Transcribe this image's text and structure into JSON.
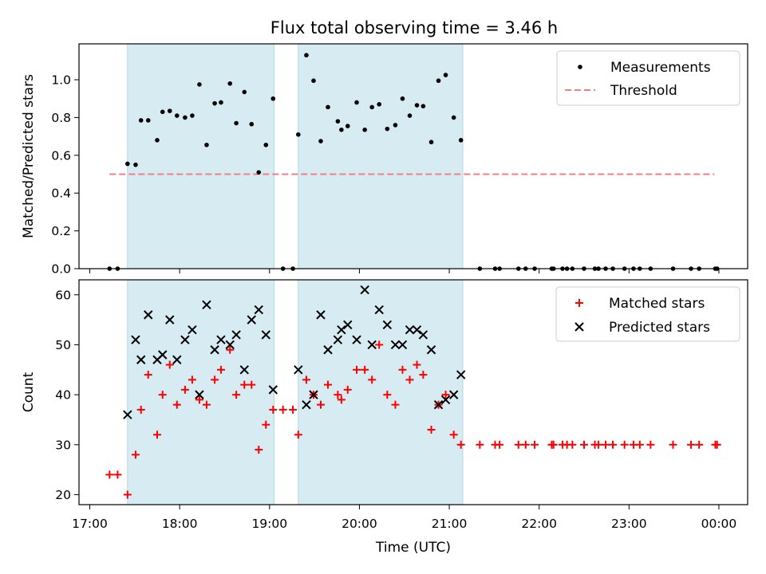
{
  "chart_data": {
    "title": "Flux total observing time = 3.46 h",
    "x_unit": "hours since 17:00 UTC (values above 7 fall after midnight)",
    "xlabel": "Time (UTC)",
    "xlim": [
      -0.12,
      7.32
    ],
    "xticks": [
      {
        "value": 0,
        "label": "17:00"
      },
      {
        "value": 1,
        "label": "18:00"
      },
      {
        "value": 2,
        "label": "19:00"
      },
      {
        "value": 3,
        "label": "20:00"
      },
      {
        "value": 4,
        "label": "21:00"
      },
      {
        "value": 5,
        "label": "22:00"
      },
      {
        "value": 6,
        "label": "23:00"
      },
      {
        "value": 7,
        "label": "00:00"
      }
    ],
    "observing_windows": [
      [
        0.42,
        2.05
      ],
      [
        2.32,
        4.15
      ]
    ],
    "top_panel": {
      "type": "scatter",
      "ylabel": "Matched/Predicted stars",
      "ylim": [
        0,
        1.19
      ],
      "yticks": [
        {
          "value": 0,
          "label": "0.0"
        },
        {
          "value": 0.2,
          "label": "0.2"
        },
        {
          "value": 0.4,
          "label": "0.4"
        },
        {
          "value": 0.6,
          "label": "0.6"
        },
        {
          "value": 0.8,
          "label": "0.8"
        },
        {
          "value": 1.0,
          "label": "1.0"
        }
      ],
      "threshold": {
        "value": 0.5,
        "x_range": [
          0.22,
          6.95
        ],
        "color": "#f08080"
      },
      "legend": {
        "position": "top-right",
        "measurements_label": "Measurements",
        "threshold_label": "Threshold"
      },
      "measurements": [
        [
          0.22,
          0
        ],
        [
          0.31,
          0
        ],
        [
          0.42,
          0.555
        ],
        [
          0.51,
          0.55
        ],
        [
          0.57,
          0.785
        ],
        [
          0.65,
          0.785
        ],
        [
          0.75,
          0.68
        ],
        [
          0.81,
          0.83
        ],
        [
          0.89,
          0.835
        ],
        [
          0.97,
          0.81
        ],
        [
          1.06,
          0.8
        ],
        [
          1.14,
          0.81
        ],
        [
          1.22,
          0.975
        ],
        [
          1.3,
          0.655
        ],
        [
          1.39,
          0.875
        ],
        [
          1.46,
          0.88
        ],
        [
          1.56,
          0.98
        ],
        [
          1.63,
          0.77
        ],
        [
          1.72,
          0.935
        ],
        [
          1.8,
          0.765
        ],
        [
          1.88,
          0.51
        ],
        [
          1.96,
          0.655
        ],
        [
          2.04,
          0.9
        ],
        [
          2.15,
          0
        ],
        [
          2.26,
          0
        ],
        [
          2.32,
          0.71
        ],
        [
          2.41,
          1.13
        ],
        [
          2.49,
          0.995
        ],
        [
          2.57,
          0.675
        ],
        [
          2.65,
          0.855
        ],
        [
          2.76,
          0.78
        ],
        [
          2.8,
          0.735
        ],
        [
          2.87,
          0.755
        ],
        [
          2.97,
          0.88
        ],
        [
          3.06,
          0.735
        ],
        [
          3.14,
          0.855
        ],
        [
          3.22,
          0.87
        ],
        [
          3.31,
          0.74
        ],
        [
          3.4,
          0.76
        ],
        [
          3.48,
          0.9
        ],
        [
          3.56,
          0.81
        ],
        [
          3.64,
          0.865
        ],
        [
          3.71,
          0.86
        ],
        [
          3.8,
          0.67
        ],
        [
          3.88,
          0.995
        ],
        [
          3.96,
          1.025
        ],
        [
          4.05,
          0.8
        ],
        [
          4.13,
          0.68
        ],
        [
          4.34,
          0
        ],
        [
          4.51,
          0
        ],
        [
          4.56,
          0
        ],
        [
          4.77,
          0
        ],
        [
          4.85,
          0
        ],
        [
          4.95,
          0
        ],
        [
          5.14,
          0
        ],
        [
          5.16,
          0
        ],
        [
          5.26,
          0
        ],
        [
          5.31,
          0
        ],
        [
          5.37,
          0
        ],
        [
          5.5,
          0
        ],
        [
          5.62,
          0
        ],
        [
          5.66,
          0
        ],
        [
          5.74,
          0
        ],
        [
          5.82,
          0
        ],
        [
          5.95,
          0
        ],
        [
          6.05,
          0
        ],
        [
          6.12,
          0
        ],
        [
          6.24,
          0
        ],
        [
          6.49,
          0
        ],
        [
          6.69,
          0
        ],
        [
          6.78,
          0
        ],
        [
          6.96,
          0
        ],
        [
          6.98,
          0
        ]
      ]
    },
    "bottom_panel": {
      "type": "scatter",
      "ylabel": "Count",
      "ylim": [
        18,
        63
      ],
      "yticks": [
        {
          "value": 20,
          "label": "20"
        },
        {
          "value": 30,
          "label": "30"
        },
        {
          "value": 40,
          "label": "40"
        },
        {
          "value": 50,
          "label": "50"
        },
        {
          "value": 60,
          "label": "60"
        }
      ],
      "legend": {
        "position": "top-right"
      },
      "series": [
        {
          "name": "Matched stars",
          "marker": "+",
          "color": "#ff0000",
          "points": [
            [
              0.22,
              24
            ],
            [
              0.31,
              24
            ],
            [
              0.42,
              20
            ],
            [
              0.51,
              28
            ],
            [
              0.57,
              37
            ],
            [
              0.65,
              44
            ],
            [
              0.75,
              32
            ],
            [
              0.81,
              40
            ],
            [
              0.89,
              46
            ],
            [
              0.97,
              38
            ],
            [
              1.06,
              41
            ],
            [
              1.14,
              43
            ],
            [
              1.22,
              39
            ],
            [
              1.3,
              38
            ],
            [
              1.39,
              43
            ],
            [
              1.46,
              45
            ],
            [
              1.56,
              49
            ],
            [
              1.63,
              40
            ],
            [
              1.72,
              42
            ],
            [
              1.8,
              42
            ],
            [
              1.88,
              29
            ],
            [
              1.96,
              34
            ],
            [
              2.04,
              37
            ],
            [
              2.15,
              37
            ],
            [
              2.26,
              37
            ],
            [
              2.32,
              32
            ],
            [
              2.41,
              43
            ],
            [
              2.49,
              40
            ],
            [
              2.57,
              38
            ],
            [
              2.65,
              42
            ],
            [
              2.76,
              40
            ],
            [
              2.8,
              39
            ],
            [
              2.87,
              41
            ],
            [
              2.97,
              45
            ],
            [
              3.06,
              45
            ],
            [
              3.14,
              43
            ],
            [
              3.22,
              50
            ],
            [
              3.31,
              40
            ],
            [
              3.4,
              38
            ],
            [
              3.48,
              45
            ],
            [
              3.56,
              43
            ],
            [
              3.64,
              46
            ],
            [
              3.71,
              44
            ],
            [
              3.8,
              33
            ],
            [
              3.88,
              38
            ],
            [
              3.96,
              40
            ],
            [
              4.05,
              32
            ],
            [
              4.13,
              30
            ],
            [
              4.34,
              30
            ],
            [
              4.51,
              30
            ],
            [
              4.56,
              30
            ],
            [
              4.77,
              30
            ],
            [
              4.85,
              30
            ],
            [
              4.95,
              30
            ],
            [
              5.14,
              30
            ],
            [
              5.16,
              30
            ],
            [
              5.26,
              30
            ],
            [
              5.31,
              30
            ],
            [
              5.37,
              30
            ],
            [
              5.5,
              30
            ],
            [
              5.62,
              30
            ],
            [
              5.66,
              30
            ],
            [
              5.74,
              30
            ],
            [
              5.82,
              30
            ],
            [
              5.95,
              30
            ],
            [
              6.05,
              30
            ],
            [
              6.12,
              30
            ],
            [
              6.24,
              30
            ],
            [
              6.49,
              30
            ],
            [
              6.69,
              30
            ],
            [
              6.78,
              30
            ],
            [
              6.96,
              30
            ],
            [
              6.98,
              30
            ]
          ]
        },
        {
          "name": "Predicted stars",
          "marker": "x",
          "color": "#000000",
          "points": [
            [
              0.42,
              36
            ],
            [
              0.51,
              51
            ],
            [
              0.57,
              47
            ],
            [
              0.65,
              56
            ],
            [
              0.75,
              47
            ],
            [
              0.81,
              48
            ],
            [
              0.89,
              55
            ],
            [
              0.97,
              47
            ],
            [
              1.06,
              51
            ],
            [
              1.14,
              53
            ],
            [
              1.22,
              40
            ],
            [
              1.3,
              58
            ],
            [
              1.39,
              49
            ],
            [
              1.46,
              51
            ],
            [
              1.56,
              50
            ],
            [
              1.63,
              52
            ],
            [
              1.72,
              45
            ],
            [
              1.8,
              55
            ],
            [
              1.88,
              57
            ],
            [
              1.96,
              52
            ],
            [
              2.04,
              41
            ],
            [
              2.32,
              45
            ],
            [
              2.41,
              38
            ],
            [
              2.49,
              40
            ],
            [
              2.57,
              56
            ],
            [
              2.65,
              49
            ],
            [
              2.76,
              51
            ],
            [
              2.8,
              53
            ],
            [
              2.87,
              54
            ],
            [
              2.97,
              51
            ],
            [
              3.06,
              61
            ],
            [
              3.14,
              50
            ],
            [
              3.22,
              57
            ],
            [
              3.31,
              54
            ],
            [
              3.4,
              50
            ],
            [
              3.48,
              50
            ],
            [
              3.56,
              53
            ],
            [
              3.64,
              53
            ],
            [
              3.71,
              52
            ],
            [
              3.8,
              49
            ],
            [
              3.88,
              38
            ],
            [
              3.96,
              39
            ],
            [
              4.05,
              40
            ],
            [
              4.13,
              44
            ]
          ]
        }
      ]
    }
  }
}
